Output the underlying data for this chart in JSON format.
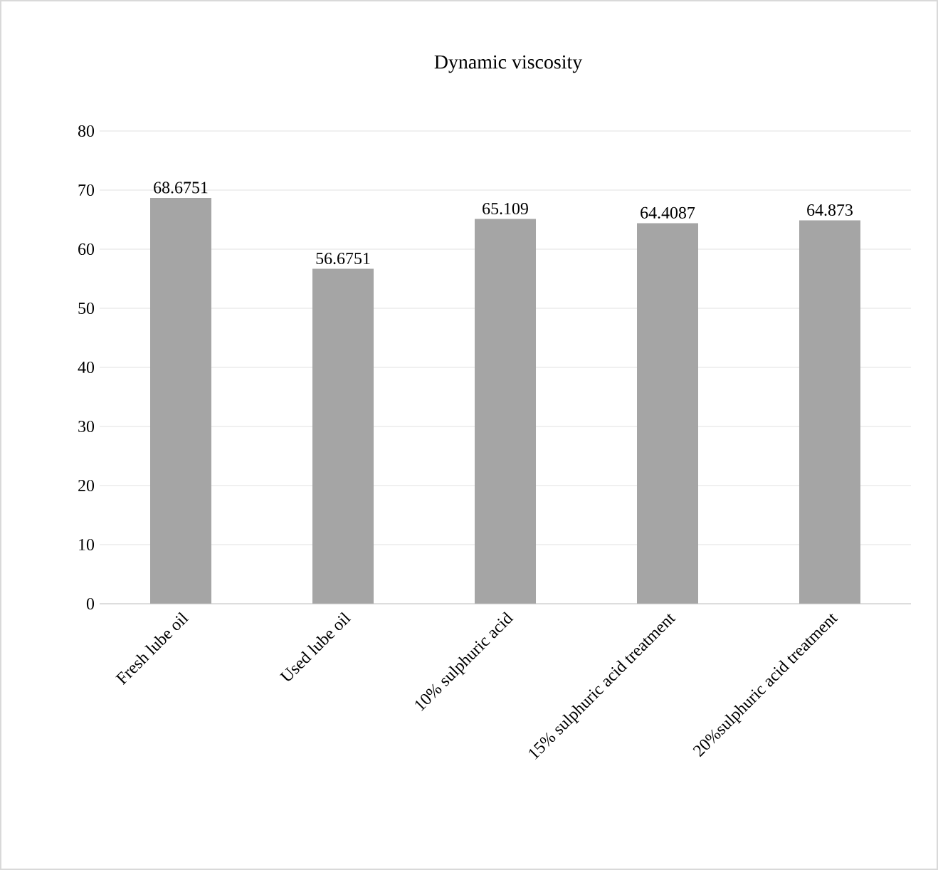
{
  "chart_data": {
    "type": "bar",
    "title": "Dynamic viscosity",
    "categories": [
      "Fresh lube oil",
      "Used lube oil",
      "10% sulphuric acid",
      "15% sulphuric acid treatment",
      "20%sulphuric acid treatment"
    ],
    "values": [
      68.6751,
      56.6751,
      65.109,
      64.4087,
      64.873
    ],
    "color": "#a5a5a5",
    "ylim": [
      0,
      80
    ],
    "yticks": [
      0,
      10,
      20,
      30,
      40,
      50,
      60,
      70,
      80
    ],
    "grid": "y",
    "data_labels": true
  }
}
